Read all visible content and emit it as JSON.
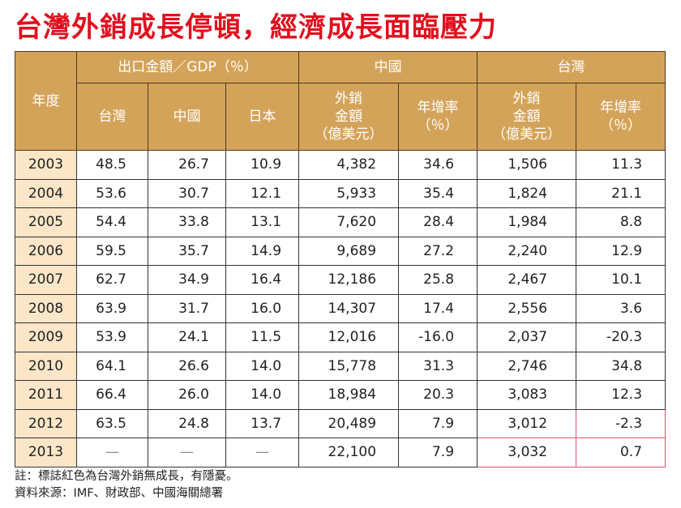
{
  "title": "台灣外銷成長停頓，經濟成長面臨壓力",
  "header": {
    "year": "年度",
    "group_gdp": "出口金額／GDP（％）",
    "group_china": "中國",
    "group_taiwan": "台灣",
    "gdp_taiwan": "台灣",
    "gdp_china": "中國",
    "gdp_japan": "日本",
    "export_amount_l1": "外銷",
    "export_amount_l2": "金額",
    "export_amount_l3": "（億美元）",
    "growth_l1": "年增率",
    "growth_l2": "（％）"
  },
  "rows": [
    {
      "year": "2003",
      "tw": "48.5",
      "cn": "26.7",
      "jp": "10.9",
      "cn_exp": "4,382",
      "cn_g": "34.6",
      "tw_exp": "1,506",
      "tw_g": "11.3"
    },
    {
      "year": "2004",
      "tw": "53.6",
      "cn": "30.7",
      "jp": "12.1",
      "cn_exp": "5,933",
      "cn_g": "35.4",
      "tw_exp": "1,824",
      "tw_g": "21.1"
    },
    {
      "year": "2005",
      "tw": "54.4",
      "cn": "33.8",
      "jp": "13.1",
      "cn_exp": "7,620",
      "cn_g": "28.4",
      "tw_exp": "1,984",
      "tw_g": "8.8"
    },
    {
      "year": "2006",
      "tw": "59.5",
      "cn": "35.7",
      "jp": "14.9",
      "cn_exp": "9,689",
      "cn_g": "27.2",
      "tw_exp": "2,240",
      "tw_g": "12.9"
    },
    {
      "year": "2007",
      "tw": "62.7",
      "cn": "34.9",
      "jp": "16.4",
      "cn_exp": "12,186",
      "cn_g": "25.8",
      "tw_exp": "2,467",
      "tw_g": "10.1"
    },
    {
      "year": "2008",
      "tw": "63.9",
      "cn": "31.7",
      "jp": "16.0",
      "cn_exp": "14,307",
      "cn_g": "17.4",
      "tw_exp": "2,556",
      "tw_g": "3.6"
    },
    {
      "year": "2009",
      "tw": "53.9",
      "cn": "24.1",
      "jp": "11.5",
      "cn_exp": "12,016",
      "cn_g": "-16.0",
      "tw_exp": "2,037",
      "tw_g": "-20.3"
    },
    {
      "year": "2010",
      "tw": "64.1",
      "cn": "26.6",
      "jp": "14.0",
      "cn_exp": "15,778",
      "cn_g": "31.3",
      "tw_exp": "2,746",
      "tw_g": "34.8"
    },
    {
      "year": "2011",
      "tw": "66.4",
      "cn": "26.0",
      "jp": "14.0",
      "cn_exp": "18,984",
      "cn_g": "20.3",
      "tw_exp": "3,083",
      "tw_g": "12.3"
    },
    {
      "year": "2012",
      "tw": "63.5",
      "cn": "24.8",
      "jp": "13.7",
      "cn_exp": "20,489",
      "cn_g": "7.9",
      "tw_exp": "3,012",
      "tw_g": "-2.3",
      "highlight": true
    },
    {
      "year": "2013",
      "tw": "—",
      "cn": "—",
      "jp": "—",
      "cn_exp": "22,100",
      "cn_g": "7.9",
      "tw_exp": "3,032",
      "tw_g": "0.7",
      "highlight": true
    }
  ],
  "colors": {
    "title": "#e0101e",
    "header_bg": "#d4a35a",
    "year_bg": "#fbe6c8",
    "highlight_border": "#e8506a"
  },
  "notes": {
    "note": "註：標誌紅色為台灣外銷無成長，有隱憂。",
    "source": "資料來源：IMF、財政部、中國海關總署"
  }
}
